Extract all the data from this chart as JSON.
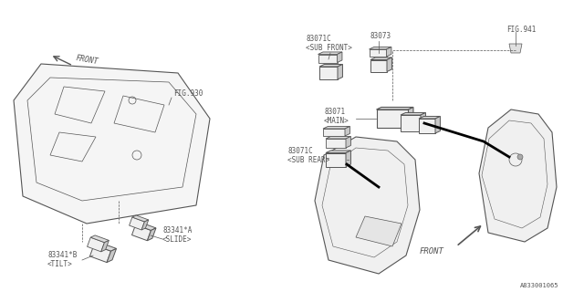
{
  "title": "",
  "bg_color": "#ffffff",
  "line_color": "#555555",
  "thin_line": 0.5,
  "med_line": 0.8,
  "thick_line": 1.2,
  "labels": {
    "tilt": "83341*B\n<TILT>",
    "slide": "83341*A\n<SLIDE>",
    "sub_rear": "83071C\n<SUB REAR>",
    "main": "83071\n<MAIN>",
    "sub_front": "83071C\n<SUB FRONT>",
    "part83073": "83073",
    "fig930": "FIG.930",
    "fig941": "FIG.941",
    "front_left": "FRONT",
    "front_right": "FRONT",
    "diagram_id": "A833001065"
  },
  "font_size_small": 5.5,
  "font_size_label": 6.0
}
